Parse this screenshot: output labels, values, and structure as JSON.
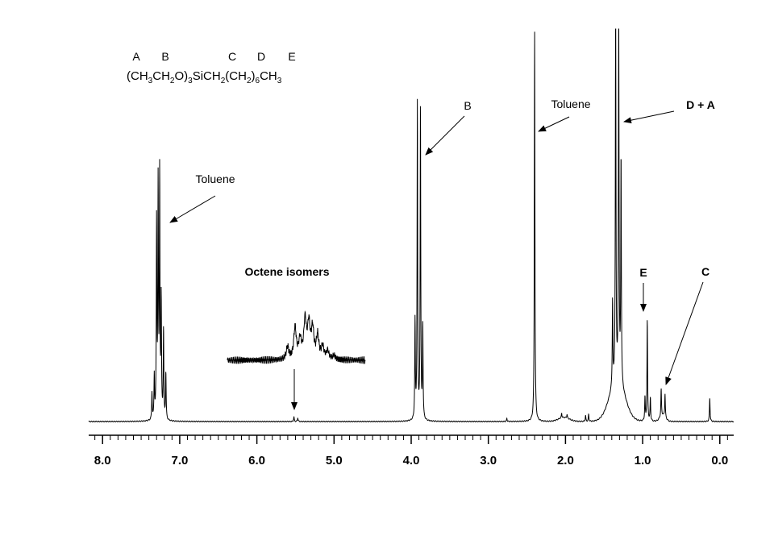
{
  "chart_data": {
    "type": "line",
    "title": "",
    "xlabel": "",
    "ylabel": "",
    "x_unit": "ppm",
    "x_reversed": true,
    "xlim": [
      8.18,
      -0.18
    ],
    "x_ticks": [
      "8.0",
      "7.0",
      "6.0",
      "5.0",
      "4.0",
      "3.0",
      "2.0",
      "1.0",
      "0.0"
    ],
    "y_axis_shown": false,
    "grid": false,
    "formula": {
      "atom_letters": [
        "A",
        "B",
        "C",
        "D",
        "E"
      ],
      "parts": [
        {
          "t": "(CH"
        },
        {
          "t": "3",
          "sub": true
        },
        {
          "t": "CH"
        },
        {
          "t": "2",
          "sub": true
        },
        {
          "t": "O)"
        },
        {
          "t": "3",
          "sub": true
        },
        {
          "t": "SiCH"
        },
        {
          "t": "2",
          "sub": true
        },
        {
          "t": "(CH"
        },
        {
          "t": "2",
          "sub": true
        },
        {
          "t": ")"
        },
        {
          "t": "6",
          "sub": true
        },
        {
          "t": "CH"
        },
        {
          "t": "3",
          "sub": true
        }
      ]
    },
    "series": [
      {
        "peaks": [
          {
            "x": 7.36,
            "h": 0.07
          },
          {
            "x": 7.33,
            "h": 0.11
          },
          {
            "x": 7.3,
            "h": 0.5
          },
          {
            "x": 7.28,
            "h": 0.59
          },
          {
            "x": 7.26,
            "h": 0.62
          },
          {
            "x": 7.24,
            "h": 0.3
          },
          {
            "x": 7.21,
            "h": 0.23
          },
          {
            "x": 7.18,
            "h": 0.12
          },
          {
            "x": 5.52,
            "h": 0.012
          },
          {
            "x": 5.47,
            "h": 0.01
          },
          {
            "x": 3.95,
            "h": 0.25
          },
          {
            "x": 3.92,
            "h": 0.81
          },
          {
            "x": 3.88,
            "h": 0.8
          },
          {
            "x": 3.85,
            "h": 0.24
          },
          {
            "x": 2.76,
            "h": 0.008
          },
          {
            "x": 2.4,
            "h": 1.0
          },
          {
            "x": 2.05,
            "h": 0.012
          },
          {
            "x": 1.98,
            "h": 0.01
          },
          {
            "x": 1.74,
            "h": 0.015
          },
          {
            "x": 1.7,
            "h": 0.018
          },
          {
            "x": 1.39,
            "h": 0.22
          },
          {
            "x": 1.35,
            "h": 1.0
          },
          {
            "x": 1.31,
            "h": 1.0
          },
          {
            "x": 1.28,
            "h": 0.58
          },
          {
            "x": 0.97,
            "h": 0.06
          },
          {
            "x": 0.94,
            "h": 0.26
          },
          {
            "x": 0.9,
            "h": 0.06
          },
          {
            "x": 0.76,
            "h": 0.07
          },
          {
            "x": 0.71,
            "h": 0.06
          },
          {
            "x": 0.13,
            "h": 0.06
          }
        ],
        "broad": [
          {
            "x": 1.33,
            "h": 0.1,
            "w": 0.14
          },
          {
            "x": 2.02,
            "h": 0.01,
            "w": 0.1
          },
          {
            "x": 0.74,
            "h": 0.015,
            "w": 0.05
          }
        ]
      }
    ],
    "inset": {
      "x_range": [
        6.2,
        5.1
      ],
      "peaks": [
        {
          "x": 5.72,
          "h": 0.3
        },
        {
          "x": 5.66,
          "h": 0.75
        },
        {
          "x": 5.62,
          "h": 0.45
        },
        {
          "x": 5.58,
          "h": 0.9
        },
        {
          "x": 5.55,
          "h": 0.8
        },
        {
          "x": 5.52,
          "h": 0.7
        },
        {
          "x": 5.48,
          "h": 0.55
        },
        {
          "x": 5.44,
          "h": 0.3
        },
        {
          "x": 5.4,
          "h": 0.2
        },
        {
          "x": 5.35,
          "h": 0.1
        }
      ]
    },
    "annotations": [
      {
        "id": "toluene-aromatic",
        "text": "Toluene",
        "bold": false,
        "target_x": 7.1
      },
      {
        "id": "octene-isomers",
        "text": "Octene isomers",
        "bold": true,
        "target_x": 5.52
      },
      {
        "id": "peak-b",
        "text": "B",
        "bold": false,
        "target_x": 3.87
      },
      {
        "id": "toluene-methyl",
        "text": "Toluene",
        "bold": false,
        "target_x": 2.32
      },
      {
        "id": "peak-d-a",
        "text": "D + A",
        "bold": true,
        "target_x": 1.22
      },
      {
        "id": "peak-e",
        "text": "E",
        "bold": true,
        "target_x": 0.94
      },
      {
        "id": "peak-c",
        "text": "C",
        "bold": true,
        "target_x": 0.66
      }
    ]
  }
}
